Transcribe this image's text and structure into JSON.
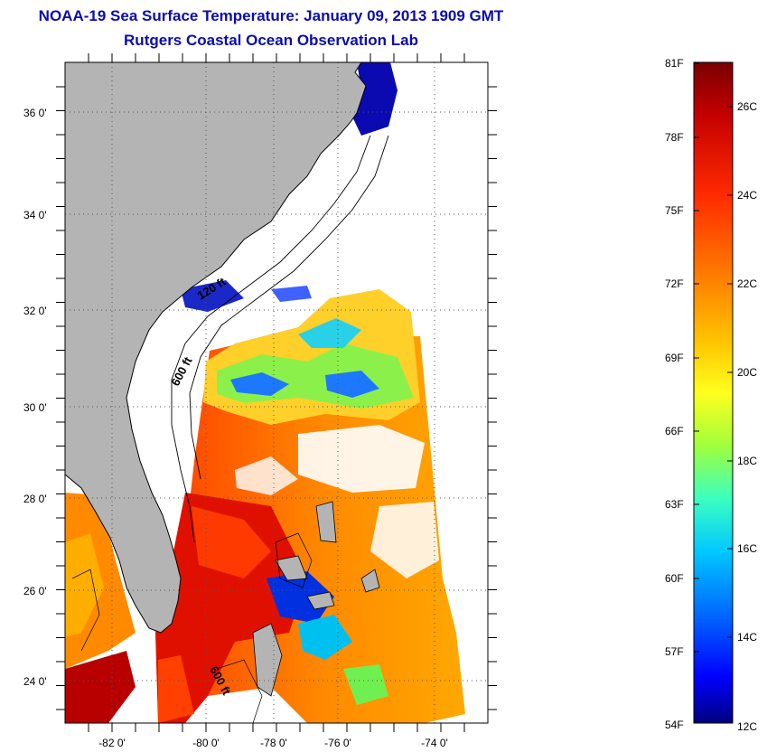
{
  "header": {
    "title": "NOAA-19 Sea Surface Temperature:  January 09, 2013 1909 GMT",
    "subtitle": "Rutgers Coastal Ocean Observation Lab"
  },
  "map": {
    "lat_labels": [
      "36 0'",
      "34 0'",
      "32 0'",
      "30 0'",
      "28 0'",
      "26 0'",
      "24 0'"
    ],
    "lon_labels": [
      "-82 0'",
      "-80 0'",
      "-78 0'",
      "-76 0'",
      "-74 0'"
    ],
    "contour_labels": [
      "120 ft",
      "600 ft",
      "600 ft"
    ],
    "colors": {
      "land": "#b4b4b4",
      "coast": "#000000",
      "grid": "#555555"
    }
  },
  "colorbar": {
    "f_labels": [
      "81F",
      "78F",
      "75F",
      "72F",
      "69F",
      "66F",
      "63F",
      "60F",
      "57F",
      "54F"
    ],
    "c_labels": [
      "26C",
      "24C",
      "22C",
      "20C",
      "18C",
      "16C",
      "14C",
      "12C"
    ],
    "stops": [
      "#7a0000",
      "#c40000",
      "#ff2a00",
      "#ff7a00",
      "#ffc200",
      "#ffff1e",
      "#a0ff3c",
      "#3cffc0",
      "#00c8ff",
      "#0064ff",
      "#0000ff",
      "#00007f"
    ]
  }
}
